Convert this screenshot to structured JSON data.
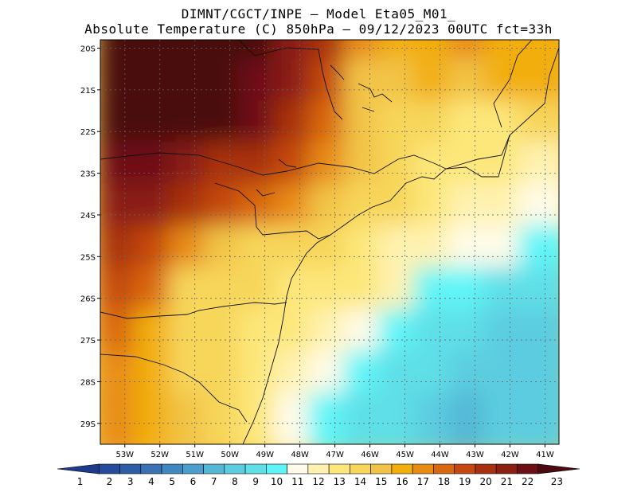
{
  "title": {
    "line1": "DIMNT/CGCT/INPE —  Model Eta05_M01_",
    "line2": "Absolute Temperature (C) 850hPa —  09/12/2023 00UTC fct=33h"
  },
  "axes": {
    "lat_labels": [
      "20S",
      "21S",
      "22S",
      "23S",
      "24S",
      "25S",
      "26S",
      "27S",
      "28S",
      "29S"
    ],
    "lon_labels": [
      "53W",
      "52W",
      "51W",
      "50W",
      "49W",
      "48W",
      "47W",
      "46W",
      "45W",
      "44W",
      "43W",
      "42W",
      "41W"
    ]
  },
  "colorbar": {
    "labels": [
      "1",
      "2",
      "3",
      "4",
      "5",
      "6",
      "7",
      "8",
      "9",
      "10",
      "11",
      "12",
      "13",
      "14",
      "15",
      "16",
      "17",
      "18",
      "19",
      "20",
      "21",
      "22",
      "23"
    ],
    "colors": [
      "#1e3a8a",
      "#264a9c",
      "#2e5da8",
      "#3a72b4",
      "#3f87bf",
      "#4a9fcc",
      "#52b8d6",
      "#5ccde0",
      "#5fdfe8",
      "#5ff5f8",
      "#fffbe8",
      "#fff2b0",
      "#fde77a",
      "#f7d65a",
      "#f2c446",
      "#f2ae0c",
      "#e88b12",
      "#d9680c",
      "#c54810",
      "#a8300e",
      "#8a1f12",
      "#6e0e16",
      "#4a0a10"
    ]
  },
  "chart_data": {
    "type": "heatmap",
    "title": "Absolute Temperature (C) 850hPa",
    "model": "Model Eta05_M01_",
    "date": "09/12/2023 00UTC",
    "forecast": "fct=33h",
    "units": "C",
    "lon_range": [
      -53.7,
      -40.6
    ],
    "lat_range": [
      -29.5,
      -19.8
    ],
    "grid_rows_lat": [
      -20,
      -21,
      -22,
      -23,
      -24,
      -25,
      -26,
      -27,
      -28,
      -29
    ],
    "grid_cols_lon": [
      -53,
      -52,
      -51,
      -50,
      -49,
      -48,
      -47,
      -46,
      -45,
      -44,
      -43,
      -42,
      -41
    ],
    "values": [
      [
        23,
        23,
        23,
        23,
        23,
        21,
        20,
        17,
        16,
        16,
        17,
        16,
        16
      ],
      [
        23,
        23,
        23,
        23,
        22,
        21,
        19,
        15,
        15,
        16,
        15,
        16,
        16
      ],
      [
        23,
        23,
        23,
        23,
        22,
        20,
        18,
        15,
        14,
        14,
        13,
        13,
        14
      ],
      [
        22,
        22,
        21,
        20,
        20,
        19,
        17,
        15,
        14,
        13,
        13,
        13,
        12
      ],
      [
        21,
        21,
        20,
        19,
        18,
        17,
        15,
        14,
        14,
        13,
        12,
        12,
        11
      ],
      [
        20,
        19,
        17,
        15,
        14,
        14,
        14,
        13,
        12,
        12,
        11,
        11,
        10
      ],
      [
        19,
        18,
        14,
        14,
        14,
        13,
        13,
        13,
        12,
        10,
        10,
        9,
        9
      ],
      [
        18,
        16,
        14,
        14,
        13,
        13,
        12,
        11,
        10,
        9,
        9,
        8,
        8
      ],
      [
        17,
        16,
        14,
        14,
        13,
        12,
        11,
        10,
        9,
        9,
        8,
        8,
        8
      ],
      [
        17,
        16,
        15,
        14,
        13,
        11,
        10,
        9,
        9,
        8,
        7,
        8,
        8
      ]
    ]
  }
}
